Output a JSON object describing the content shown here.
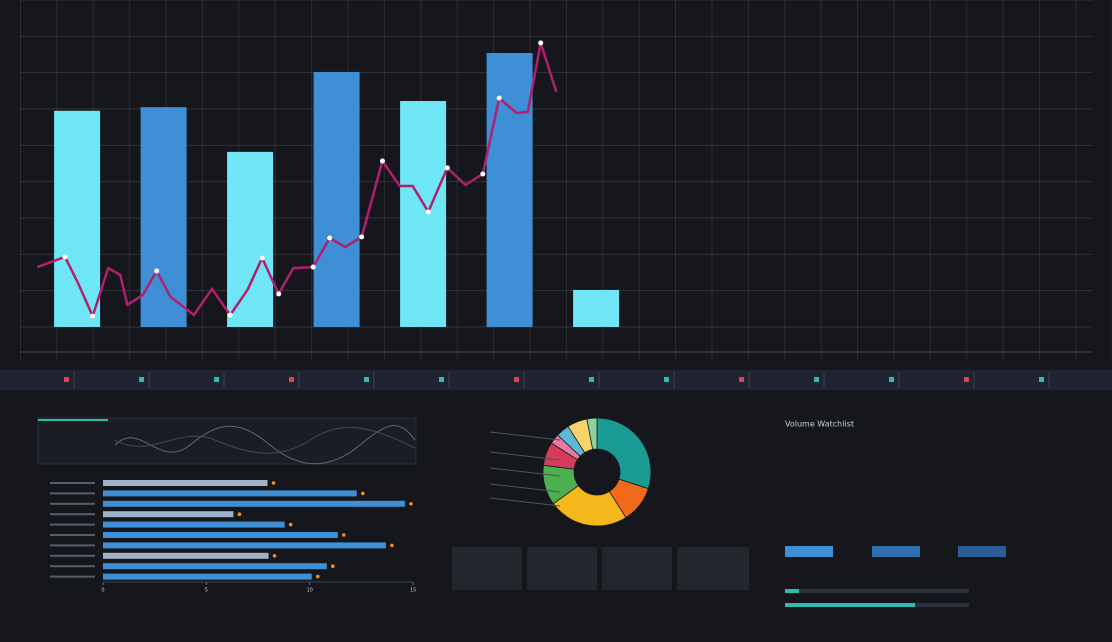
{
  "chart_data": [
    {
      "type": "bar",
      "x": [
        1,
        2,
        3,
        4,
        5,
        6,
        7
      ],
      "values": [
        5.95,
        6.05,
        4.82,
        7.02,
        6.22,
        7.54,
        1.02
      ],
      "colors": [
        "#6fe6f5",
        "#3f8fd6",
        "#6fe6f5",
        "#3f8fd6",
        "#6fe6f5",
        "#3f8fd6",
        "#6fe6f5"
      ],
      "xlim": [
        0.34,
        12.71
      ],
      "ylim": [
        0,
        9
      ],
      "yticks": [
        0,
        1,
        2,
        3,
        4,
        5,
        6,
        7,
        8,
        9
      ],
      "grid": true
    },
    {
      "type": "line",
      "color": "#b0206e",
      "xlim": [
        0.34,
        12.71
      ],
      "ylim": [
        0,
        9
      ],
      "x": [
        0.54,
        0.86,
        1.01,
        1.18,
        1.36,
        1.5,
        1.58,
        1.76,
        1.92,
        2.08,
        2.35,
        2.56,
        2.77,
        2.97,
        3.14,
        3.33,
        3.5,
        3.73,
        3.92,
        4.1,
        4.29,
        4.53,
        4.73,
        4.88,
        5.06,
        5.28,
        5.49,
        5.69,
        5.88,
        6.08,
        6.21,
        6.36,
        6.54
      ],
      "values": [
        1.65,
        1.93,
        1.21,
        0.3,
        1.62,
        1.43,
        0.61,
        0.88,
        1.54,
        0.83,
        0.33,
        1.05,
        0.33,
        1.02,
        1.9,
        0.91,
        1.62,
        1.65,
        2.45,
        2.2,
        2.48,
        4.57,
        3.88,
        3.88,
        3.17,
        4.38,
        3.91,
        4.21,
        6.3,
        5.89,
        5.92,
        7.82,
        6.47
      ]
    },
    {
      "type": "barh",
      "values": [
        7.96,
        12.28,
        14.61,
        6.31,
        8.79,
        11.36,
        13.69,
        8.01,
        10.83,
        10.1
      ],
      "colors": [
        "#9fb3c8",
        "#3f8fd6",
        "#3f8fd6",
        "#9fb3c8",
        "#3f8fd6",
        "#3f8fd6",
        "#3f8fd6",
        "#9fb3c8",
        "#3f8fd6",
        "#3f8fd6"
      ],
      "marker_color": "#f5901e",
      "xlim": [
        0,
        15
      ],
      "xticks": [
        0,
        5,
        10,
        15
      ]
    },
    {
      "type": "pie",
      "donut": true,
      "values": [
        30,
        11,
        24,
        12,
        7,
        3,
        4,
        6,
        3
      ],
      "colors": [
        "#1a9c95",
        "#f06a1c",
        "#f5b81c",
        "#4caf50",
        "#d63b5a",
        "#e57ba0",
        "#5fb8d8",
        "#f7d46b",
        "#8fd19e"
      ]
    }
  ],
  "watchlist": {
    "title": "Volume Watchlist"
  }
}
